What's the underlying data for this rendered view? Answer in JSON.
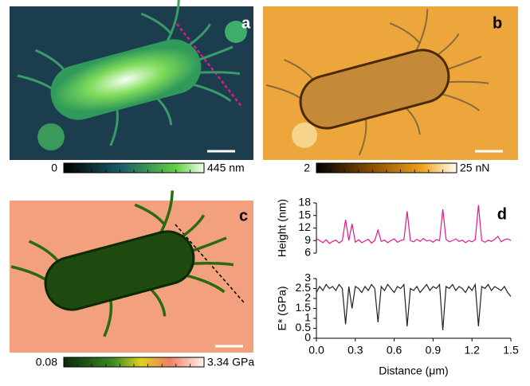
{
  "panels": [
    {
      "label": "a",
      "colorbar": [
        "0",
        "445 nm"
      ]
    },
    {
      "label": "b",
      "colorbar": [
        "2",
        "25 nN"
      ]
    },
    {
      "label": "c",
      "colorbar": [
        "0.08",
        "3.34 GPa"
      ]
    }
  ],
  "chart_label": "d",
  "chart_data": [
    {
      "type": "line",
      "ylabel": "Height (nm)",
      "color": "#e0198c",
      "x": [
        0,
        0.025,
        0.05,
        0.075,
        0.1,
        0.125,
        0.15,
        0.175,
        0.2,
        0.225,
        0.25,
        0.275,
        0.3,
        0.325,
        0.35,
        0.375,
        0.4,
        0.425,
        0.45,
        0.475,
        0.5,
        0.525,
        0.55,
        0.575,
        0.6,
        0.625,
        0.65,
        0.675,
        0.7,
        0.725,
        0.75,
        0.775,
        0.8,
        0.825,
        0.85,
        0.875,
        0.9,
        0.925,
        0.95,
        0.975,
        1.0,
        1.025,
        1.05,
        1.075,
        1.1,
        1.125,
        1.15,
        1.175,
        1.2,
        1.225,
        1.25,
        1.275,
        1.3,
        1.325,
        1.35,
        1.375,
        1.4,
        1.425,
        1.45,
        1.475,
        1.5
      ],
      "values": [
        9.5,
        9.0,
        8.5,
        9.2,
        8.3,
        8.8,
        9.1,
        8.4,
        9.0,
        14.0,
        9.0,
        13.0,
        8.6,
        9.2,
        8.5,
        8.9,
        9.3,
        8.4,
        9.0,
        11.5,
        8.8,
        9.1,
        8.5,
        9.0,
        9.4,
        8.6,
        9.0,
        9.2,
        16.0,
        9.0,
        8.7,
        9.3,
        8.8,
        9.5,
        8.9,
        9.1,
        8.6,
        9.2,
        9.0,
        16.5,
        9.3,
        8.7,
        9.0,
        9.4,
        8.8,
        9.1,
        8.5,
        9.0,
        8.7,
        9.2,
        17.5,
        9.0,
        8.6,
        9.1,
        8.8,
        9.3,
        10.0,
        8.7,
        9.2,
        9.4,
        9.0
      ],
      "xlim": [
        0,
        1.5
      ],
      "ylim": [
        6,
        18
      ],
      "yticks": [
        6,
        9,
        12,
        15,
        18
      ]
    },
    {
      "type": "line",
      "ylabel": "E* (GPa)",
      "xlabel": "Distance (μm)",
      "color": "#222222",
      "x": [
        0,
        0.025,
        0.05,
        0.075,
        0.1,
        0.125,
        0.15,
        0.175,
        0.2,
        0.225,
        0.25,
        0.275,
        0.3,
        0.325,
        0.35,
        0.375,
        0.4,
        0.425,
        0.45,
        0.475,
        0.5,
        0.525,
        0.55,
        0.575,
        0.6,
        0.625,
        0.65,
        0.675,
        0.7,
        0.725,
        0.75,
        0.775,
        0.8,
        0.825,
        0.85,
        0.875,
        0.9,
        0.925,
        0.95,
        0.975,
        1.0,
        1.025,
        1.05,
        1.075,
        1.1,
        1.125,
        1.15,
        1.175,
        1.2,
        1.225,
        1.25,
        1.275,
        1.3,
        1.325,
        1.35,
        1.375,
        1.4,
        1.425,
        1.45,
        1.475,
        1.5
      ],
      "values": [
        2.3,
        2.6,
        2.4,
        2.7,
        2.5,
        2.6,
        2.4,
        2.7,
        2.5,
        0.7,
        2.6,
        1.5,
        2.6,
        2.5,
        2.3,
        2.6,
        2.4,
        2.7,
        2.5,
        0.8,
        2.6,
        2.4,
        2.7,
        2.5,
        2.3,
        2.6,
        2.5,
        2.7,
        0.6,
        2.5,
        2.4,
        2.6,
        2.3,
        2.5,
        2.7,
        2.4,
        2.6,
        2.5,
        2.7,
        0.4,
        2.6,
        2.5,
        2.7,
        2.4,
        2.6,
        2.5,
        2.3,
        2.6,
        2.4,
        2.7,
        0.6,
        2.6,
        2.5,
        2.7,
        2.4,
        2.6,
        2.5,
        2.4,
        2.6,
        2.3,
        2.1
      ],
      "xlim": [
        0,
        1.5
      ],
      "ylim": [
        0,
        3
      ],
      "yticks": [
        0,
        0.5,
        1,
        1.5,
        2,
        2.5,
        3
      ],
      "xticks": [
        {
          "value": 0,
          "label": "0.0"
        },
        0.3,
        0.6,
        0.9,
        1.2,
        1.5
      ]
    }
  ]
}
